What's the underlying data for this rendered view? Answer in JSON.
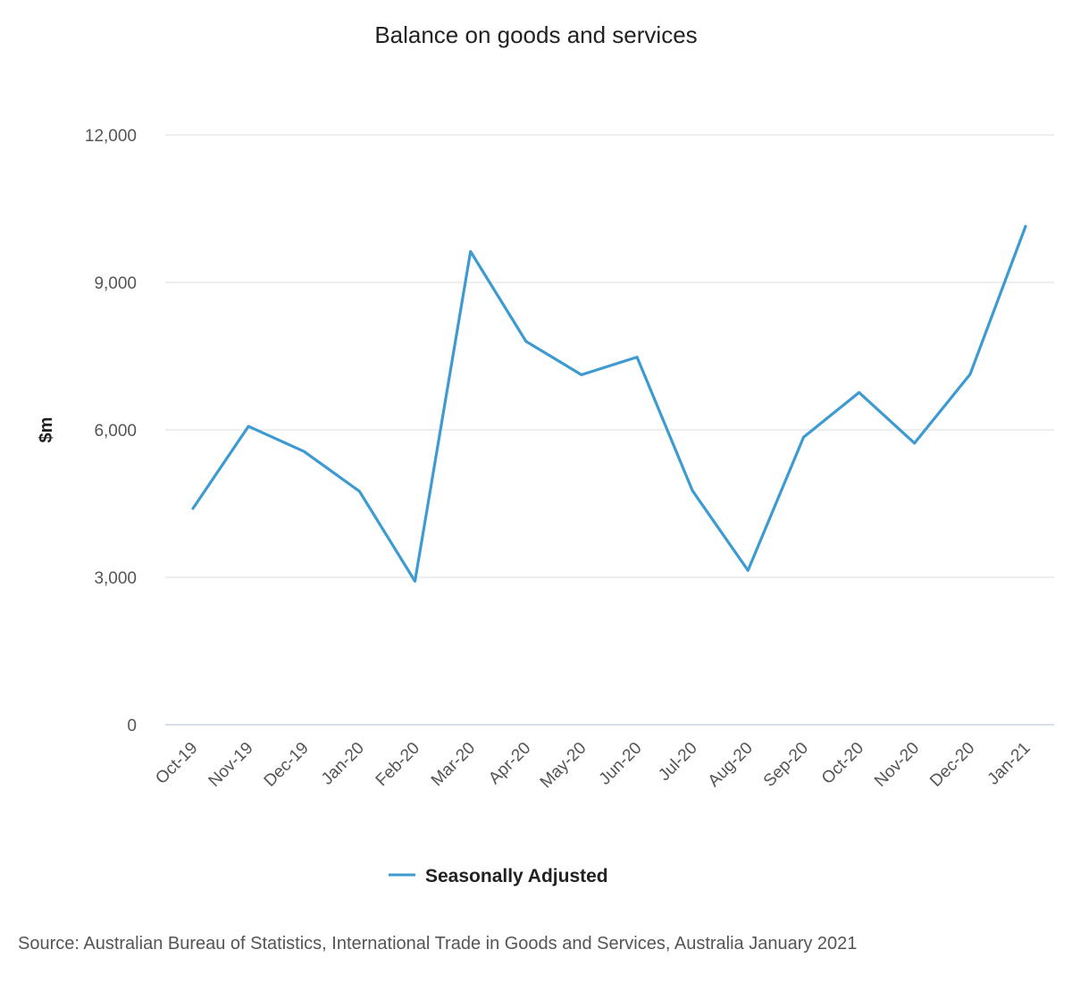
{
  "chart_data": {
    "type": "line",
    "title": "Balance on goods and services",
    "ylabel": "$m",
    "xlabel": "",
    "ylim": [
      0,
      12000
    ],
    "yticks": [
      0,
      3000,
      6000,
      9000,
      12000
    ],
    "ytick_labels": [
      "0",
      "3,000",
      "6,000",
      "9,000",
      "12,000"
    ],
    "categories": [
      "Oct-19",
      "Nov-19",
      "Dec-19",
      "Jan-20",
      "Feb-20",
      "Mar-20",
      "Apr-20",
      "May-20",
      "Jun-20",
      "Jul-20",
      "Aug-20",
      "Sep-20",
      "Oct-20",
      "Nov-20",
      "Dec-20",
      "Jan-21"
    ],
    "series": [
      {
        "name": "Seasonally Adjusted",
        "color": "#3d9bd1",
        "values": [
          4400,
          6070,
          5560,
          4750,
          2920,
          9630,
          7800,
          7120,
          7480,
          4760,
          3140,
          5850,
          6760,
          5730,
          7130,
          10140
        ]
      }
    ],
    "grid": true,
    "legend": "bottom-center"
  },
  "source": "Source: Australian Bureau of Statistics, International Trade in Goods and Services, Australia January 2021"
}
